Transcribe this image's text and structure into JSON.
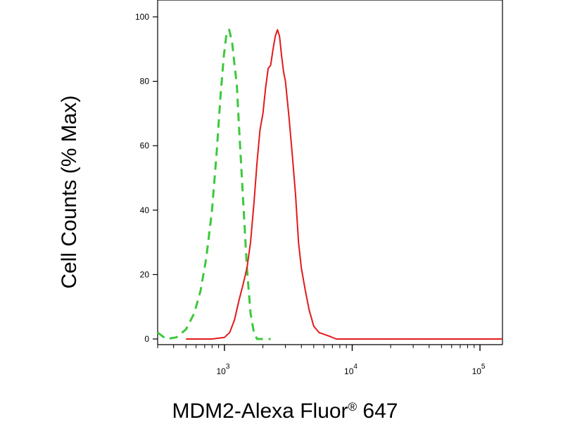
{
  "chart_data": {
    "type": "line",
    "xlabel": "MDM2-Alexa Fluor",
    "xlabel_sup": "®",
    "xlabel_suffix": " 647",
    "ylabel": "Cell Counts (% Max)",
    "x_scale": "log",
    "xlim": [
      300,
      150000
    ],
    "ylim": [
      0,
      100
    ],
    "y_ticks": [
      "0",
      "20",
      "40",
      "60",
      "80",
      "100"
    ],
    "x_ticks": [
      {
        "base": "10",
        "exp": "3",
        "value": 1000
      },
      {
        "base": "10",
        "exp": "4",
        "value": 10000
      },
      {
        "base": "10",
        "exp": "5",
        "value": 100000
      }
    ],
    "grid": false,
    "series": [
      {
        "color": "#3cc83c",
        "style": "dashed",
        "points": [
          [
            300,
            2
          ],
          [
            350,
            0
          ],
          [
            420,
            0.5
          ],
          [
            500,
            3
          ],
          [
            580,
            8
          ],
          [
            650,
            15
          ],
          [
            720,
            25
          ],
          [
            800,
            40
          ],
          [
            870,
            58
          ],
          [
            930,
            75
          ],
          [
            990,
            88
          ],
          [
            1040,
            95
          ],
          [
            1090,
            96
          ],
          [
            1150,
            92
          ],
          [
            1200,
            85
          ],
          [
            1250,
            79
          ],
          [
            1300,
            66
          ],
          [
            1400,
            43
          ],
          [
            1500,
            22
          ],
          [
            1600,
            8
          ],
          [
            1700,
            2
          ],
          [
            1800,
            0
          ],
          [
            2000,
            0
          ],
          [
            2300,
            0
          ]
        ]
      },
      {
        "color": "#e21a1a",
        "style": "solid",
        "points": [
          [
            500,
            0
          ],
          [
            800,
            0
          ],
          [
            1000,
            0.5
          ],
          [
            1100,
            2
          ],
          [
            1200,
            6
          ],
          [
            1300,
            12
          ],
          [
            1400,
            17
          ],
          [
            1500,
            22
          ],
          [
            1600,
            30
          ],
          [
            1700,
            42
          ],
          [
            1800,
            55
          ],
          [
            1900,
            65
          ],
          [
            2000,
            70
          ],
          [
            2100,
            78
          ],
          [
            2200,
            84
          ],
          [
            2300,
            85
          ],
          [
            2400,
            90
          ],
          [
            2500,
            94
          ],
          [
            2600,
            96
          ],
          [
            2700,
            94
          ],
          [
            2800,
            88
          ],
          [
            2900,
            83
          ],
          [
            3000,
            80
          ],
          [
            3200,
            69
          ],
          [
            3400,
            57
          ],
          [
            3600,
            45
          ],
          [
            3800,
            30
          ],
          [
            4000,
            22
          ],
          [
            4300,
            15
          ],
          [
            4600,
            9
          ],
          [
            5000,
            4
          ],
          [
            5500,
            2
          ],
          [
            6500,
            1
          ],
          [
            7500,
            0
          ],
          [
            9000,
            0
          ],
          [
            15000,
            0
          ],
          [
            50000,
            0
          ],
          [
            150000,
            0
          ]
        ]
      }
    ]
  }
}
